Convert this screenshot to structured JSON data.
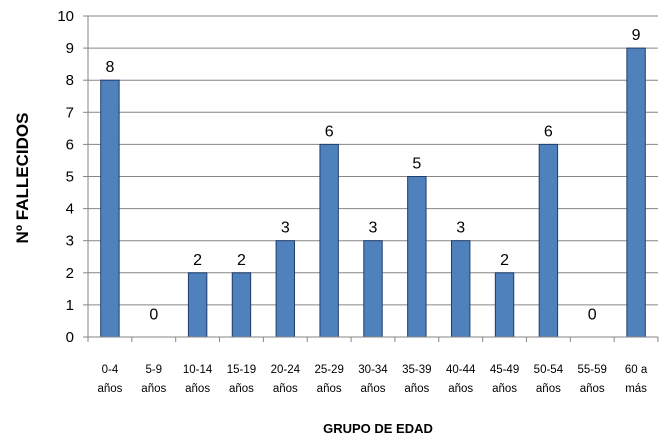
{
  "chart_data": {
    "type": "bar",
    "title": "",
    "xlabel": "GRUPO DE EDAD",
    "ylabel": "Nº  FALLECIDOS",
    "ylim": [
      0,
      10
    ],
    "yticks": [
      0,
      1,
      2,
      3,
      4,
      5,
      6,
      7,
      8,
      9,
      10
    ],
    "categories": [
      [
        "0-4",
        "años"
      ],
      [
        "5-9",
        "años"
      ],
      [
        "10-14",
        "años"
      ],
      [
        "15-19",
        "años"
      ],
      [
        "20-24",
        "años"
      ],
      [
        "25-29",
        "años"
      ],
      [
        "30-34",
        "años"
      ],
      [
        "35-39",
        "años"
      ],
      [
        "40-44",
        "años"
      ],
      [
        "45-49",
        "años"
      ],
      [
        "50-54",
        "años"
      ],
      [
        "55-59",
        "años"
      ],
      [
        "60 a",
        "más"
      ]
    ],
    "values": [
      8,
      0,
      2,
      2,
      3,
      6,
      3,
      5,
      3,
      2,
      6,
      0,
      9
    ],
    "data_labels": true,
    "grid": true,
    "colors": {
      "bar": "#4f81bd",
      "bar_edge": "#1f3d6b",
      "grid": "#868686",
      "axis": "#868686"
    }
  }
}
